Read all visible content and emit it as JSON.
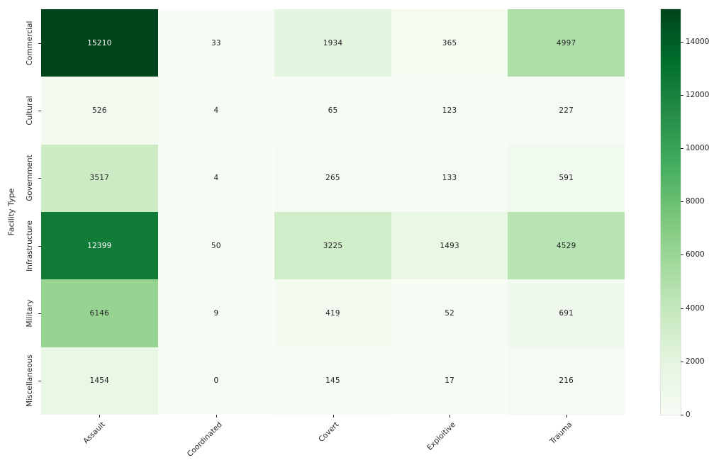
{
  "chart_data": {
    "type": "heatmap",
    "xlabel": "",
    "ylabel": "Facility Type",
    "x_categories": [
      "Assault",
      "Coordinated",
      "Covert",
      "Exploitive",
      "Trauma"
    ],
    "y_categories": [
      "Commercial",
      "Cultural",
      "Government",
      "Infrastructure",
      "Military",
      "Miscellaneous"
    ],
    "values": [
      [
        15210,
        33,
        1934,
        365,
        4997
      ],
      [
        526,
        4,
        65,
        123,
        227
      ],
      [
        3517,
        4,
        265,
        133,
        591
      ],
      [
        12399,
        50,
        3225,
        1493,
        4529
      ],
      [
        6146,
        9,
        419,
        52,
        691
      ],
      [
        1454,
        0,
        145,
        17,
        216
      ]
    ],
    "vmin": 0,
    "vmax": 15210,
    "colormap": "Greens",
    "colormap_stops": [
      "#f7fcf5",
      "#e5f5e0",
      "#c7e9c0",
      "#a1d99b",
      "#74c476",
      "#41ab5d",
      "#238b45",
      "#006d2c",
      "#00441b"
    ],
    "annot_dark_text_color": "#262626",
    "annot_light_text_color": "#ffffff",
    "colorbar_ticks": [
      0,
      2000,
      4000,
      6000,
      8000,
      10000,
      12000,
      14000
    ],
    "legend_position": "right-colorbar",
    "grid": false,
    "xtick_rotation_deg": 45
  }
}
